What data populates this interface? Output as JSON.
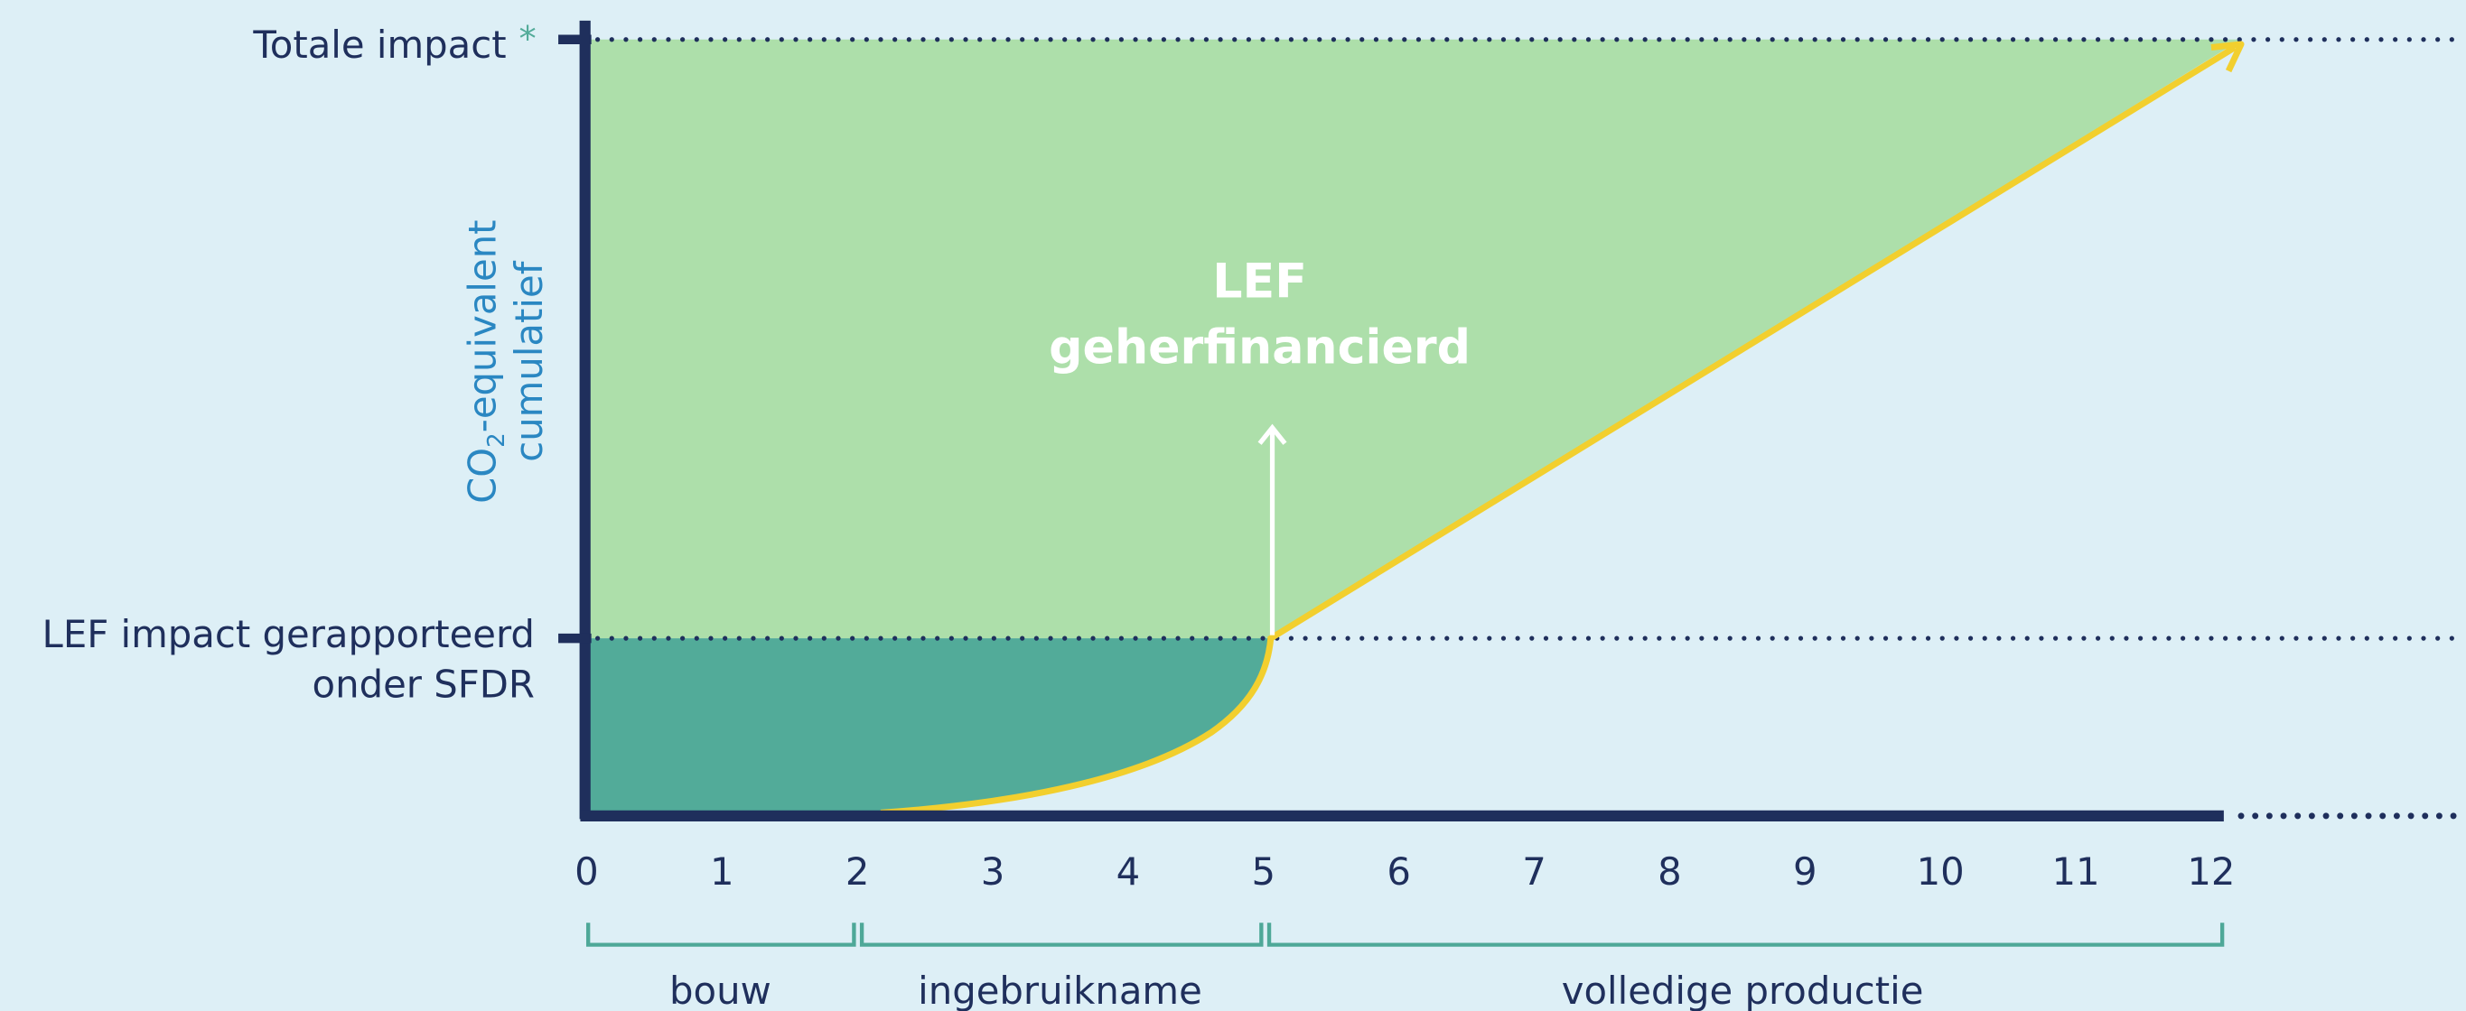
{
  "y_axis": {
    "top_label": "Totale impact",
    "top_marker": "*",
    "mid_label_1": "LEF impact gerapporteerd",
    "mid_label_2": "onder SFDR",
    "title_co": "CO",
    "title_sub": "2",
    "title_rest": "-equivalent",
    "title_line2": "cumulatief"
  },
  "annotation": {
    "line1": "LEF",
    "line2": "geherfinancierd"
  },
  "x_axis": {
    "ticks": [
      0,
      1,
      2,
      3,
      4,
      5,
      6,
      7,
      8,
      9,
      10,
      11,
      12
    ]
  },
  "phases": [
    "bouw",
    "ingebruikname",
    "volledige productie"
  ]
}
